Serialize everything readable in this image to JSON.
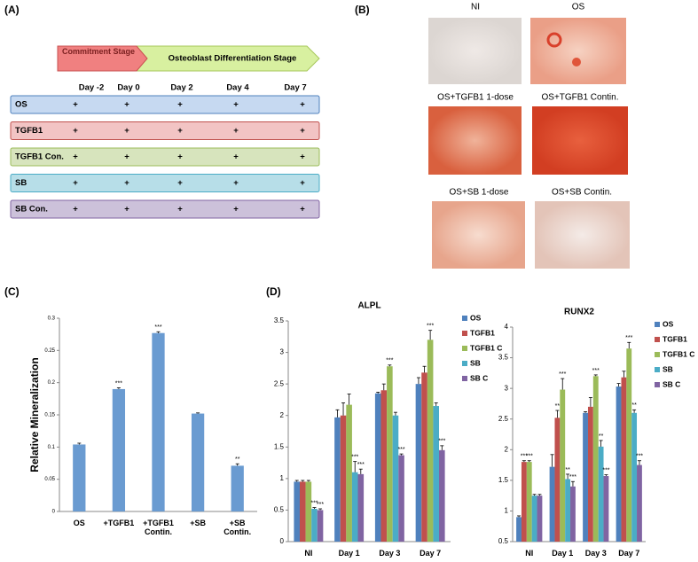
{
  "panel_labels": [
    "(A)",
    "(B)",
    "(C)",
    "(D)"
  ],
  "stages": {
    "commitment": "Commitment Stage",
    "differentiation": "Osteoblast Differentiation Stage"
  },
  "schedule": {
    "columns": [
      "Day -2",
      "Day 0",
      "Day 2",
      "Day 4",
      "Day 7"
    ],
    "rows": [
      {
        "label": "OS",
        "cells": [
          "+",
          "+",
          "+",
          "+",
          "+"
        ]
      },
      {
        "label": "TGFB1",
        "cells": [
          "+",
          "+",
          "+",
          "+",
          "+"
        ]
      },
      {
        "label": "TGFB1 Con.",
        "cells": [
          "+",
          "+",
          "+",
          "+",
          "+"
        ]
      },
      {
        "label": "SB",
        "cells": [
          "+",
          "+",
          "+",
          "+",
          "+"
        ]
      },
      {
        "label": "SB Con.",
        "cells": [
          "+",
          "+",
          "+",
          "+",
          "+"
        ]
      }
    ]
  },
  "image_labels": [
    "NI",
    "OS",
    "OS+TGFB1 1-dose",
    "OS+TGFB1 Contin.",
    "OS+SB 1-dose",
    "OS+SB Contin."
  ],
  "chart_data": [
    {
      "type": "bar",
      "ylabel": "Relative Mineralization",
      "categories": [
        "OS",
        "+TGFB1",
        "+TGFB1 Contin.",
        "+SB",
        "+SB Contin."
      ],
      "values": [
        0.104,
        0.19,
        0.277,
        0.152,
        0.071
      ],
      "errors": [
        0.002,
        0.002,
        0.002,
        0.001,
        0.003
      ],
      "annotations": [
        null,
        "***",
        "***",
        null,
        "**"
      ],
      "color": "#6a9bd1",
      "ylim": [
        0,
        0.3
      ],
      "yticks": [
        0,
        0.05,
        0.1,
        0.15,
        0.2,
        0.25,
        0.3
      ]
    },
    {
      "type": "bar",
      "title": "ALPL",
      "categories": [
        "NI",
        "Day 1",
        "Day 3",
        "Day 7"
      ],
      "ylim": [
        0,
        3.5
      ],
      "yticks": [
        0,
        0.5,
        1,
        1.5,
        2,
        2.5,
        3,
        3.5
      ],
      "series": [
        {
          "name": "OS",
          "color": "#4f81bd",
          "values": [
            0.95,
            1.97,
            2.35,
            2.5
          ],
          "errors": [
            0.02,
            0.12,
            0.02,
            0.1
          ],
          "annotations": [
            null,
            null,
            null,
            null
          ]
        },
        {
          "name": "TGFB1",
          "color": "#c0504d",
          "values": [
            0.95,
            2.0,
            2.4,
            2.68
          ],
          "errors": [
            0.02,
            0.2,
            0.1,
            0.1
          ],
          "annotations": [
            null,
            null,
            null,
            null
          ]
        },
        {
          "name": "TGFB1 C",
          "color": "#9bbb59",
          "values": [
            0.95,
            2.17,
            2.78,
            3.2
          ],
          "errors": [
            0.02,
            0.17,
            0.02,
            0.15
          ],
          "annotations": [
            null,
            null,
            "***",
            "***"
          ]
        },
        {
          "name": "SB",
          "color": "#4bacc6",
          "values": [
            0.52,
            1.1,
            2.0,
            2.15
          ],
          "errors": [
            0.02,
            0.17,
            0.05,
            0.05
          ],
          "annotations": [
            "***",
            "***",
            null,
            null
          ]
        },
        {
          "name": "SB C",
          "color": "#8064a2",
          "values": [
            0.5,
            1.07,
            1.37,
            1.45
          ],
          "errors": [
            0.02,
            0.08,
            0.02,
            0.07
          ],
          "annotations": [
            "***",
            "***",
            "***",
            "***"
          ]
        }
      ]
    },
    {
      "type": "bar",
      "title": "RUNX2",
      "categories": [
        "NI",
        "Day 1",
        "Day 3",
        "Day 7"
      ],
      "ylim": [
        0.5,
        4
      ],
      "yticks": [
        0.5,
        1,
        1.5,
        2,
        2.5,
        3,
        3.5,
        4
      ],
      "series": [
        {
          "name": "OS",
          "color": "#4f81bd",
          "values": [
            0.9,
            1.72,
            2.6,
            3.03
          ],
          "errors": [
            0.02,
            0.2,
            0.02,
            0.05
          ],
          "annotations": [
            null,
            null,
            null,
            null
          ]
        },
        {
          "name": "TGFB1",
          "color": "#c0504d",
          "values": [
            1.8,
            2.52,
            2.7,
            3.18
          ],
          "errors": [
            0.02,
            0.12,
            0.15,
            0.1
          ],
          "annotations": [
            "***",
            "**",
            null,
            null
          ]
        },
        {
          "name": "TGFB1 C",
          "color": "#9bbb59",
          "values": [
            1.8,
            2.98,
            3.2,
            3.65
          ],
          "errors": [
            0.02,
            0.18,
            0.02,
            0.1
          ],
          "annotations": [
            "***",
            "***",
            "***",
            "***"
          ]
        },
        {
          "name": "SB",
          "color": "#4bacc6",
          "values": [
            1.25,
            1.52,
            2.05,
            2.6
          ],
          "errors": [
            0.02,
            0.08,
            0.1,
            0.05
          ],
          "annotations": [
            null,
            "**",
            "**",
            "**"
          ]
        },
        {
          "name": "SB C",
          "color": "#8064a2",
          "values": [
            1.25,
            1.4,
            1.57,
            1.75
          ],
          "errors": [
            0.02,
            0.08,
            0.02,
            0.07
          ],
          "annotations": [
            null,
            "***",
            "***",
            "***"
          ]
        }
      ]
    }
  ]
}
